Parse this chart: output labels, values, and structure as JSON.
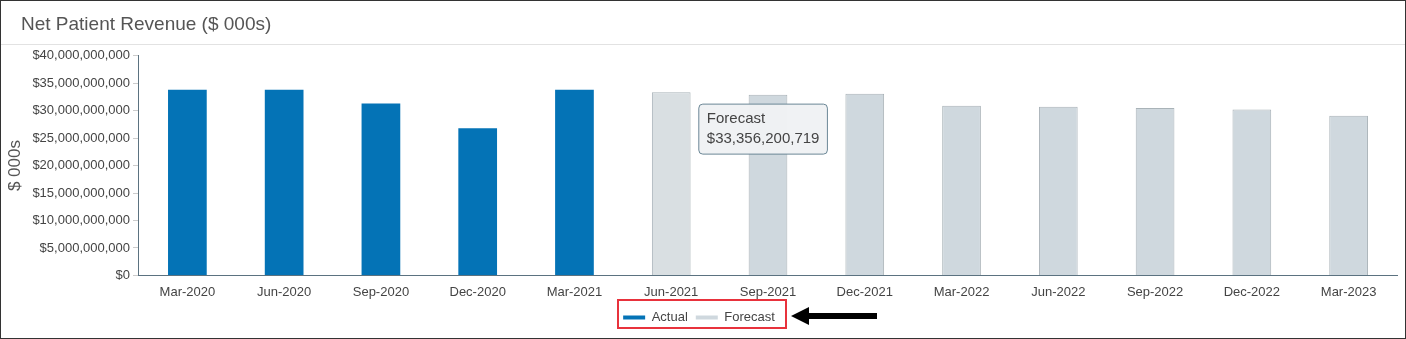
{
  "chart_data": {
    "type": "bar",
    "title": "Net Patient Revenue ($ 000s)",
    "ylabel": "$ 000s",
    "categories": [
      "Mar-2020",
      "Jun-2020",
      "Sep-2020",
      "Dec-2020",
      "Mar-2021",
      "Jun-2021",
      "Sep-2021",
      "Dec-2021",
      "Mar-2022",
      "Jun-2022",
      "Sep-2022",
      "Dec-2022",
      "Mar-2023"
    ],
    "series": [
      {
        "name": "Actual",
        "color": "#0473b6",
        "values": [
          33800000000,
          33800000000,
          31300000000,
          26800000000,
          33800000000,
          null,
          null,
          null,
          null,
          null,
          null,
          null,
          null
        ]
      },
      {
        "name": "Forecast",
        "color": "#cfd8de",
        "colors": [
          null,
          null,
          null,
          null,
          null,
          "#d9dfe2",
          "#cfd8de",
          "#cfd8de",
          "#cfd8de",
          "#cfd8de",
          "#cfd8de",
          "#cfd8de",
          "#cfd8de"
        ],
        "values": [
          null,
          null,
          null,
          null,
          null,
          33356200719,
          32900000000,
          33100000000,
          30900000000,
          30700000000,
          30500000000,
          30200000000,
          29100000000
        ]
      }
    ],
    "ylim": [
      0,
      40000000000
    ],
    "yticks": [
      {
        "value": 0,
        "label": "$0"
      },
      {
        "value": 5000000000,
        "label": "$5,000,000,000"
      },
      {
        "value": 10000000000,
        "label": "$10,000,000,000"
      },
      {
        "value": 15000000000,
        "label": "$15,000,000,000"
      },
      {
        "value": 20000000000,
        "label": "$20,000,000,000"
      },
      {
        "value": 25000000000,
        "label": "$25,000,000,000"
      },
      {
        "value": 30000000000,
        "label": "$30,000,000,000"
      },
      {
        "value": 35000000000,
        "label": "$35,000,000,000"
      },
      {
        "value": 40000000000,
        "label": "$40,000,000,000"
      }
    ],
    "annotations": [
      "Forecast\n$33,356,200,719"
    ],
    "grid": false,
    "legend": "bottom"
  }
}
